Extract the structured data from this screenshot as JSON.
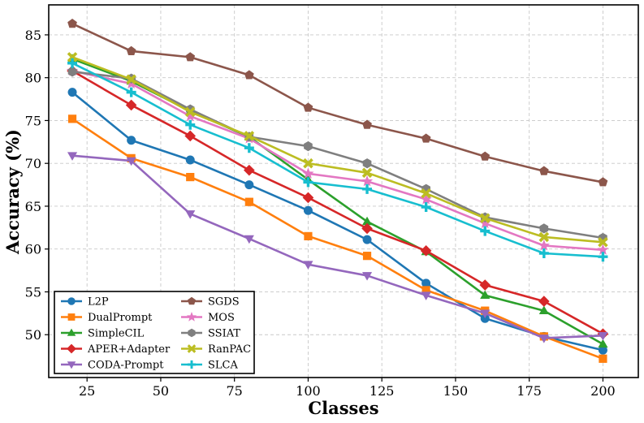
{
  "chart_data": {
    "type": "line",
    "title": "",
    "xlabel": "Classes",
    "ylabel": "Accuracy (%)",
    "xlim": [
      12,
      212
    ],
    "ylim": [
      45,
      88.5
    ],
    "xticks": [
      25,
      50,
      75,
      100,
      125,
      150,
      175,
      200
    ],
    "yticks": [
      50,
      55,
      60,
      65,
      70,
      75,
      80,
      85
    ],
    "grid": true,
    "legend_position": "lower-left",
    "x": [
      20,
      40,
      60,
      80,
      100,
      120,
      140,
      160,
      180,
      200
    ],
    "series": [
      {
        "name": "L2P",
        "color": "#1f77b4",
        "marker": "circle",
        "values": [
          78.3,
          72.7,
          70.4,
          67.5,
          64.5,
          61.1,
          56.0,
          51.9,
          49.8,
          48.2
        ]
      },
      {
        "name": "DualPrompt",
        "color": "#ff7f0e",
        "marker": "square",
        "values": [
          75.2,
          70.6,
          68.4,
          65.5,
          61.5,
          59.2,
          55.2,
          52.8,
          49.8,
          47.2
        ]
      },
      {
        "name": "SimpleCIL",
        "color": "#2ca02c",
        "marker": "triangle-up",
        "values": [
          82.2,
          79.6,
          76.1,
          73.1,
          68.1,
          63.2,
          59.7,
          54.6,
          52.8,
          48.9
        ]
      },
      {
        "name": "APER+Adapter",
        "color": "#d62728",
        "marker": "diamond",
        "values": [
          80.8,
          76.8,
          73.2,
          69.2,
          66.0,
          62.4,
          59.8,
          55.8,
          53.9,
          50.1
        ]
      },
      {
        "name": "CODA-Prompt",
        "color": "#9467bd",
        "marker": "triangle-down",
        "values": [
          70.9,
          70.3,
          64.1,
          61.2,
          58.2,
          56.9,
          54.6,
          52.5,
          49.6,
          49.9
        ]
      },
      {
        "name": "SGDS",
        "color": "#8c564b",
        "marker": "pentagon",
        "values": [
          86.3,
          83.1,
          82.4,
          80.3,
          76.5,
          74.5,
          72.9,
          70.8,
          69.1,
          67.8
        ]
      },
      {
        "name": "MOS",
        "color": "#e377c2",
        "marker": "star",
        "values": [
          80.8,
          79.3,
          75.5,
          72.9,
          68.8,
          67.9,
          65.8,
          63.0,
          60.4,
          59.9
        ]
      },
      {
        "name": "SSIAT",
        "color": "#7f7f7f",
        "marker": "hexagon",
        "values": [
          80.7,
          79.9,
          76.3,
          73.1,
          72.0,
          70.0,
          67.0,
          63.7,
          62.4,
          61.3
        ]
      },
      {
        "name": "RanPAC",
        "color": "#bcbd22",
        "marker": "x-filled",
        "values": [
          82.4,
          79.8,
          76.0,
          73.2,
          70.0,
          68.9,
          66.5,
          63.6,
          61.4,
          60.8
        ]
      },
      {
        "name": "SLCA",
        "color": "#17becf",
        "marker": "plus-filled",
        "values": [
          81.7,
          78.3,
          74.5,
          71.8,
          67.8,
          67.0,
          64.9,
          62.1,
          59.5,
          59.1
        ]
      }
    ]
  }
}
